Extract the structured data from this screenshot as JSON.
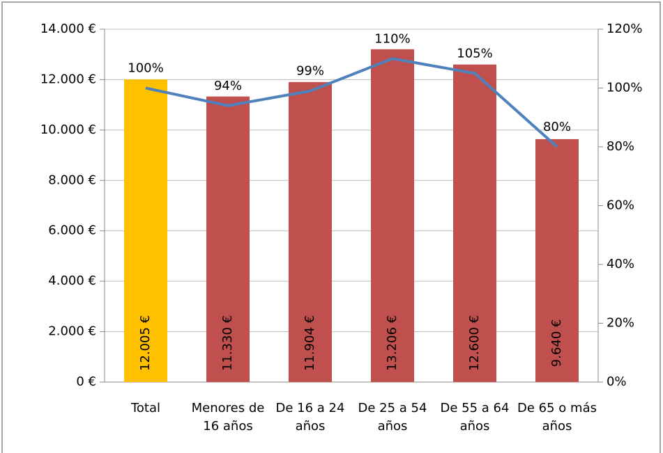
{
  "chart_data": {
    "type": "bar",
    "categories": [
      "Total",
      "Menores de 16 años",
      "De 16 a 24 años",
      "De 25 a 54 años",
      "De 55 a 64 años",
      "De 65 o más años"
    ],
    "series": [
      {
        "type": "bar",
        "values": [
          12005,
          11330,
          11904,
          13206,
          12600,
          9640
        ],
        "value_labels": [
          "12.005 €",
          "11.330 €",
          "11.904 €",
          "13.206 €",
          "12.600 €",
          "9.640 €"
        ],
        "colors": [
          "#ffc000",
          "#c0504d",
          "#c0504d",
          "#c0504d",
          "#c0504d",
          "#c0504d"
        ]
      },
      {
        "type": "line",
        "axis": "y2",
        "color": "#4f81bd",
        "values": [
          100,
          94,
          99,
          110,
          105,
          80
        ],
        "value_labels": [
          "100%",
          "94%",
          "99%",
          "110%",
          "105%",
          "80%"
        ]
      }
    ],
    "ylim": [
      0,
      14000
    ],
    "yticks": [
      {
        "value": 0,
        "label": "0 €"
      },
      {
        "value": 2000,
        "label": "2.000 €"
      },
      {
        "value": 4000,
        "label": "4.000 €"
      },
      {
        "value": 6000,
        "label": "6.000 €"
      },
      {
        "value": 8000,
        "label": "8.000 €"
      },
      {
        "value": 10000,
        "label": "10.000 €"
      },
      {
        "value": 12000,
        "label": "12.000 €"
      },
      {
        "value": 14000,
        "label": "14.000 €"
      }
    ],
    "y2lim": [
      0,
      120
    ],
    "y2ticks": [
      {
        "value": 0,
        "label": "0%"
      },
      {
        "value": 20,
        "label": "20%"
      },
      {
        "value": 40,
        "label": "40%"
      },
      {
        "value": 60,
        "label": "60%"
      },
      {
        "value": 80,
        "label": "80%"
      },
      {
        "value": 100,
        "label": "100%"
      },
      {
        "value": 120,
        "label": "120%"
      }
    ],
    "grid": true
  }
}
